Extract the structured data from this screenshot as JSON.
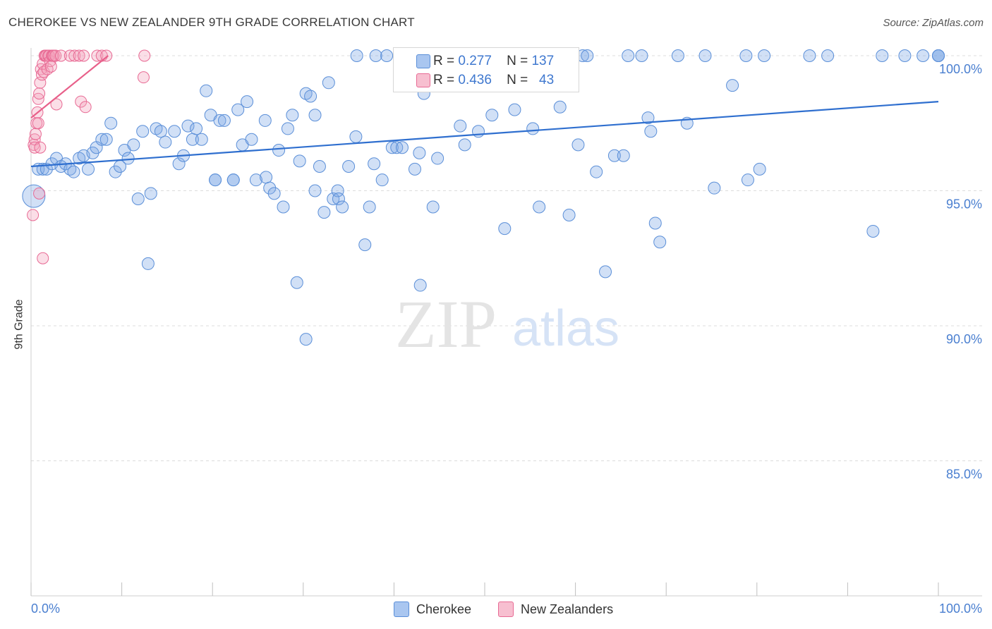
{
  "title": "CHEROKEE VS NEW ZEALANDER 9TH GRADE CORRELATION CHART",
  "source": "Source: ZipAtlas.com",
  "watermark": {
    "zip": "ZIP",
    "atlas": "atlas"
  },
  "colors": {
    "blue": "#5b8fd8",
    "blue_fill": "rgba(122,165,230,0.35)",
    "blue_line": "#2f6fcf",
    "pink": "#e86a94",
    "pink_fill": "rgba(243,160,186,0.35)",
    "pink_line": "#e8608a",
    "tick_blue": "#4a7fd0",
    "grid": "#dcdcdc"
  },
  "legend": {
    "rows": [
      {
        "r_label": "R =",
        "r_value": "0.277",
        "n_label": "N =",
        "n_value": "137",
        "color": "#a9c6f0",
        "border": "#5b8fd8"
      },
      {
        "r_label": "R =",
        "r_value": "0.436",
        "n_label": "N =",
        "n_value": "43",
        "color": "#f7bfd0",
        "border": "#e86a94"
      }
    ]
  },
  "bottom_legend": [
    {
      "label": "Cherokee",
      "color": "#a9c6f0",
      "border": "#5b8fd8"
    },
    {
      "label": "New Zealanders",
      "color": "#f7bfd0",
      "border": "#e86a94"
    }
  ],
  "chart_data": {
    "type": "scatter",
    "title": "CHEROKEE VS NEW ZEALANDER 9TH GRADE CORRELATION CHART",
    "xlabel": "",
    "ylabel": "9th Grade",
    "xlim": [
      0,
      100
    ],
    "ylim": [
      80.5,
      100.5
    ],
    "x_tick_labels": [
      "0.0%",
      "100.0%"
    ],
    "y_ticks": [
      100,
      95,
      90,
      85
    ],
    "y_tick_labels": [
      "100.0%",
      "95.0%",
      "90.0%",
      "85.0%"
    ],
    "series": [
      {
        "name": "Cherokee",
        "r": 0.277,
        "n": 137,
        "trend": {
          "x": [
            0,
            100
          ],
          "y": [
            95.9,
            98.3
          ]
        },
        "points": [
          [
            0.3,
            94.8
          ],
          [
            0.8,
            95.8
          ],
          [
            1.3,
            95.8
          ],
          [
            1.7,
            95.8
          ],
          [
            2.3,
            96
          ],
          [
            2.8,
            96.2
          ],
          [
            3.3,
            95.9
          ],
          [
            3.8,
            96
          ],
          [
            4.3,
            95.8
          ],
          [
            4.7,
            95.7
          ],
          [
            5.3,
            96.2
          ],
          [
            5.8,
            96.3
          ],
          [
            6.3,
            95.8
          ],
          [
            6.8,
            96.4
          ],
          [
            7.2,
            96.6
          ],
          [
            7.8,
            96.9
          ],
          [
            8.3,
            96.9
          ],
          [
            8.8,
            97.5
          ],
          [
            9.3,
            95.7
          ],
          [
            9.8,
            95.9
          ],
          [
            10.3,
            96.5
          ],
          [
            10.7,
            96.2
          ],
          [
            11.3,
            96.7
          ],
          [
            12.3,
            97.2
          ],
          [
            11.8,
            94.7
          ],
          [
            12.9,
            92.3
          ],
          [
            13.2,
            94.9
          ],
          [
            13.8,
            97.3
          ],
          [
            14.3,
            97.2
          ],
          [
            14.8,
            96.8
          ],
          [
            15.8,
            97.2
          ],
          [
            16.3,
            96.0
          ],
          [
            16.8,
            96.3
          ],
          [
            17.3,
            97.4
          ],
          [
            17.8,
            96.9
          ],
          [
            18.2,
            97.3
          ],
          [
            18.8,
            96.9
          ],
          [
            19.3,
            98.7
          ],
          [
            19.8,
            97.8
          ],
          [
            20.3,
            95.4
          ],
          [
            20.8,
            97.6
          ],
          [
            21.3,
            97.6
          ],
          [
            22.3,
            95.4
          ],
          [
            22.8,
            98.0
          ],
          [
            23.3,
            96.7
          ],
          [
            23.8,
            98.3
          ],
          [
            24.3,
            96.9
          ],
          [
            24.8,
            95.4
          ],
          [
            25.8,
            97.6
          ],
          [
            25.9,
            95.5
          ],
          [
            26.3,
            95.1
          ],
          [
            26.8,
            94.9
          ],
          [
            27.3,
            96.5
          ],
          [
            27.8,
            94.4
          ],
          [
            28.3,
            97.3
          ],
          [
            28.8,
            97.8
          ],
          [
            29.3,
            91.6
          ],
          [
            29.6,
            96.1
          ],
          [
            30.3,
            98.6
          ],
          [
            30.8,
            98.5
          ],
          [
            31.3,
            97.8
          ],
          [
            31.8,
            95.9
          ],
          [
            32.3,
            94.2
          ],
          [
            32.8,
            99.0
          ],
          [
            33.3,
            94.7
          ],
          [
            33.8,
            95.0
          ],
          [
            33.9,
            94.7
          ],
          [
            34.3,
            94.4
          ],
          [
            35.0,
            95.9
          ],
          [
            35.8,
            97.0
          ],
          [
            35.9,
            100
          ],
          [
            36.8,
            93.0
          ],
          [
            37.3,
            94.4
          ],
          [
            37.8,
            96.0
          ],
          [
            38.0,
            100
          ],
          [
            38.7,
            95.4
          ],
          [
            39.2,
            100
          ],
          [
            39.8,
            96.6
          ],
          [
            40.3,
            96.6
          ],
          [
            40.9,
            96.6
          ],
          [
            41.3,
            100
          ],
          [
            42.3,
            95.8
          ],
          [
            42.8,
            96.4
          ],
          [
            42.9,
            91.5
          ],
          [
            43.3,
            98.6
          ],
          [
            44.3,
            94.4
          ],
          [
            44.8,
            96.2
          ],
          [
            46.5,
            100
          ],
          [
            47.3,
            97.4
          ],
          [
            47.8,
            96.7
          ],
          [
            48.3,
            100
          ],
          [
            49.3,
            97.2
          ],
          [
            50.3,
            100
          ],
          [
            50.8,
            97.8
          ],
          [
            52.2,
            93.6
          ],
          [
            53.3,
            98.0
          ],
          [
            53.8,
            100
          ],
          [
            55.3,
            97.3
          ],
          [
            56.0,
            94.4
          ],
          [
            56.8,
            100
          ],
          [
            58.3,
            98.1
          ],
          [
            59.3,
            94.1
          ],
          [
            60.3,
            96.7
          ],
          [
            60.8,
            100
          ],
          [
            61.3,
            100
          ],
          [
            62.3,
            95.7
          ],
          [
            63.3,
            92.0
          ],
          [
            64.3,
            96.3
          ],
          [
            65.3,
            96.3
          ],
          [
            65.8,
            100
          ],
          [
            67.3,
            100
          ],
          [
            68.0,
            97.7
          ],
          [
            68.3,
            97.2
          ],
          [
            68.8,
            93.8
          ],
          [
            69.3,
            93.1
          ],
          [
            71.3,
            100
          ],
          [
            72.3,
            97.5
          ],
          [
            74.3,
            100
          ],
          [
            75.3,
            95.1
          ],
          [
            77.3,
            98.9
          ],
          [
            78.8,
            100
          ],
          [
            79.0,
            95.4
          ],
          [
            80.3,
            95.8
          ],
          [
            80.8,
            100
          ],
          [
            85.8,
            100
          ],
          [
            87.8,
            100
          ],
          [
            92.8,
            93.5
          ],
          [
            93.8,
            100
          ],
          [
            96.3,
            100
          ],
          [
            98.3,
            100
          ],
          [
            100,
            100
          ],
          [
            100,
            100
          ],
          [
            100,
            100
          ],
          [
            22.3,
            95.4
          ],
          [
            30.3,
            89.5
          ],
          [
            20.3,
            95.4
          ],
          [
            31.3,
            95.0
          ]
        ]
      },
      {
        "name": "New Zealanders",
        "r": 0.436,
        "n": 43,
        "trend": {
          "x": [
            0,
            8.5
          ],
          "y": [
            97.7,
            100
          ]
        },
        "points": [
          [
            0.2,
            94.1
          ],
          [
            0.3,
            96.7
          ],
          [
            0.4,
            96.9
          ],
          [
            0.5,
            97.1
          ],
          [
            0.6,
            97.5
          ],
          [
            0.7,
            97.9
          ],
          [
            0.8,
            98.4
          ],
          [
            0.9,
            98.6
          ],
          [
            1.0,
            99.0
          ],
          [
            1.1,
            99.5
          ],
          [
            1.2,
            99.3
          ],
          [
            1.3,
            99.7
          ],
          [
            1.4,
            99.4
          ],
          [
            1.5,
            100
          ],
          [
            1.6,
            100
          ],
          [
            1.7,
            100
          ],
          [
            1.8,
            99.5
          ],
          [
            1.9,
            100
          ],
          [
            2.0,
            100
          ],
          [
            2.1,
            99.8
          ],
          [
            2.2,
            99.6
          ],
          [
            2.3,
            100
          ],
          [
            2.4,
            100
          ],
          [
            2.5,
            100
          ],
          [
            2.7,
            100
          ],
          [
            2.8,
            98.2
          ],
          [
            3.3,
            100
          ],
          [
            4.3,
            100
          ],
          [
            4.8,
            100
          ],
          [
            5.3,
            100
          ],
          [
            5.5,
            98.3
          ],
          [
            5.8,
            100
          ],
          [
            6.0,
            98.1
          ],
          [
            7.3,
            100
          ],
          [
            7.8,
            100
          ],
          [
            8.3,
            100
          ],
          [
            12.5,
            100
          ],
          [
            12.4,
            99.2
          ],
          [
            0.9,
            94.9
          ],
          [
            1.3,
            92.5
          ],
          [
            0.4,
            96.6
          ],
          [
            0.8,
            97.5
          ],
          [
            1.0,
            96.6
          ]
        ]
      }
    ]
  }
}
